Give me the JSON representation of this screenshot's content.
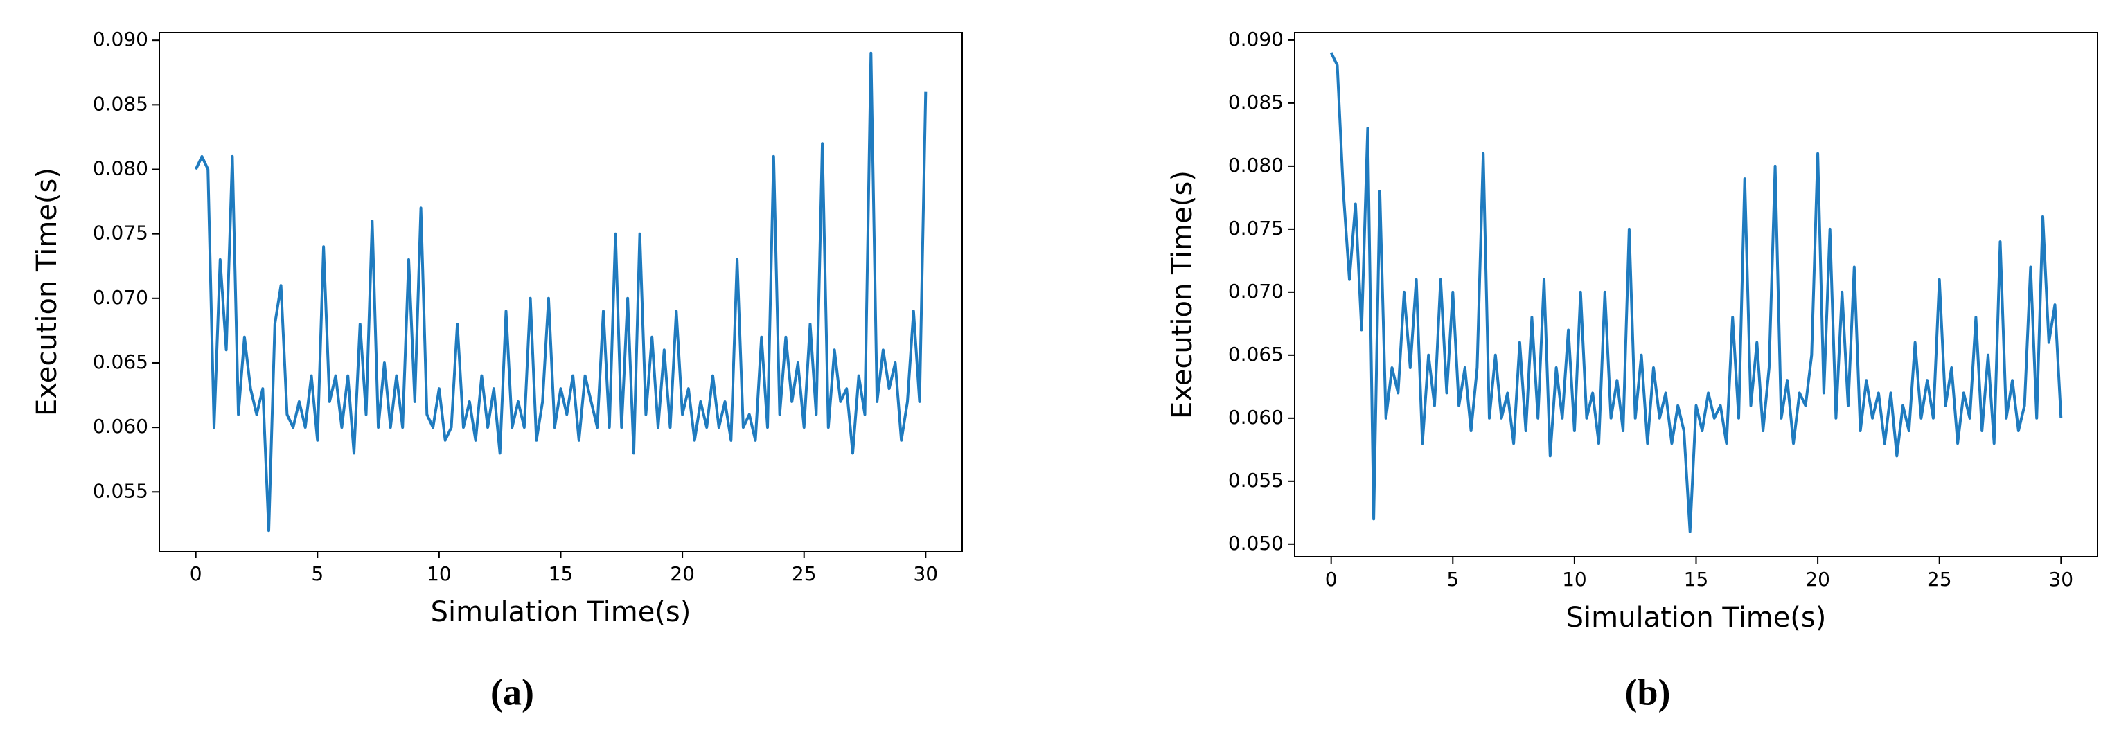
{
  "chart_data": [
    {
      "type": "line",
      "caption": "(a)",
      "x_label": "Simulation Time(s)",
      "y_label": "Execution Time(s)",
      "x": [
        0,
        0.25,
        0.5,
        0.75,
        1,
        1.25,
        1.5,
        1.75,
        2,
        2.25,
        2.5,
        2.75,
        3,
        3.25,
        3.5,
        3.75,
        4,
        4.25,
        4.5,
        4.75,
        5,
        5.25,
        5.5,
        5.75,
        6,
        6.25,
        6.5,
        6.75,
        7,
        7.25,
        7.5,
        7.75,
        8,
        8.25,
        8.5,
        8.75,
        9,
        9.25,
        9.5,
        9.75,
        10,
        10.25,
        10.5,
        10.75,
        11,
        11.25,
        11.5,
        11.75,
        12,
        12.25,
        12.5,
        12.75,
        13,
        13.25,
        13.5,
        13.75,
        14,
        14.25,
        14.5,
        14.75,
        15,
        15.25,
        15.5,
        15.75,
        16,
        16.25,
        16.5,
        16.75,
        17,
        17.25,
        17.5,
        17.75,
        18,
        18.25,
        18.5,
        18.75,
        19,
        19.25,
        19.5,
        19.75,
        20,
        20.25,
        20.5,
        20.75,
        21,
        21.25,
        21.5,
        21.75,
        22,
        22.25,
        22.5,
        22.75,
        23,
        23.25,
        23.5,
        23.75,
        24,
        24.25,
        24.5,
        24.75,
        25,
        25.25,
        25.5,
        25.75,
        26,
        26.25,
        26.5,
        26.75,
        27,
        27.25,
        27.5,
        27.75,
        28,
        28.25,
        28.5,
        28.75,
        29,
        29.25,
        29.5,
        29.75,
        30
      ],
      "series": [
        {
          "color": "#1f7bbf",
          "values": [
            0.08,
            0.081,
            0.08,
            0.06,
            0.073,
            0.066,
            0.081,
            0.061,
            0.067,
            0.063,
            0.061,
            0.063,
            0.052,
            0.068,
            0.071,
            0.061,
            0.06,
            0.062,
            0.06,
            0.064,
            0.059,
            0.074,
            0.062,
            0.064,
            0.06,
            0.064,
            0.058,
            0.068,
            0.061,
            0.076,
            0.06,
            0.065,
            0.06,
            0.064,
            0.06,
            0.073,
            0.062,
            0.077,
            0.061,
            0.06,
            0.063,
            0.059,
            0.06,
            0.068,
            0.06,
            0.062,
            0.059,
            0.064,
            0.06,
            0.063,
            0.058,
            0.069,
            0.06,
            0.062,
            0.06,
            0.07,
            0.059,
            0.062,
            0.07,
            0.06,
            0.063,
            0.061,
            0.064,
            0.059,
            0.064,
            0.062,
            0.06,
            0.069,
            0.06,
            0.075,
            0.06,
            0.07,
            0.058,
            0.075,
            0.061,
            0.067,
            0.06,
            0.066,
            0.06,
            0.069,
            0.061,
            0.063,
            0.059,
            0.062,
            0.06,
            0.064,
            0.06,
            0.062,
            0.059,
            0.073,
            0.06,
            0.061,
            0.059,
            0.067,
            0.06,
            0.081,
            0.061,
            0.067,
            0.062,
            0.065,
            0.06,
            0.068,
            0.061,
            0.082,
            0.06,
            0.066,
            0.062,
            0.063,
            0.058,
            0.064,
            0.061,
            0.089,
            0.062,
            0.066,
            0.063,
            0.065,
            0.059,
            0.062,
            0.069,
            0.062,
            0.086
          ]
        }
      ],
      "xlim": [
        -1.5,
        31.5
      ],
      "xticks": [
        0,
        5,
        10,
        15,
        20,
        25,
        30
      ],
      "ylim": [
        0.0504,
        0.0906
      ],
      "yticks": [
        0.055,
        {
          "value": 0.06,
          "label": "0.060"
        },
        0.065,
        {
          "value": 0.07,
          "label": "0.070"
        },
        0.075,
        {
          "value": 0.08,
          "label": "0.080"
        },
        0.085,
        {
          "value": 0.09,
          "label": "0.090"
        }
      ]
    },
    {
      "type": "line",
      "caption": "(b)",
      "x_label": "Simulation Time(s)",
      "y_label": "Execution Time(s)",
      "x": [
        0,
        0.25,
        0.5,
        0.75,
        1,
        1.25,
        1.5,
        1.75,
        2,
        2.25,
        2.5,
        2.75,
        3,
        3.25,
        3.5,
        3.75,
        4,
        4.25,
        4.5,
        4.75,
        5,
        5.25,
        5.5,
        5.75,
        6,
        6.25,
        6.5,
        6.75,
        7,
        7.25,
        7.5,
        7.75,
        8,
        8.25,
        8.5,
        8.75,
        9,
        9.25,
        9.5,
        9.75,
        10,
        10.25,
        10.5,
        10.75,
        11,
        11.25,
        11.5,
        11.75,
        12,
        12.25,
        12.5,
        12.75,
        13,
        13.25,
        13.5,
        13.75,
        14,
        14.25,
        14.5,
        14.75,
        15,
        15.25,
        15.5,
        15.75,
        16,
        16.25,
        16.5,
        16.75,
        17,
        17.25,
        17.5,
        17.75,
        18,
        18.25,
        18.5,
        18.75,
        19,
        19.25,
        19.5,
        19.75,
        20,
        20.25,
        20.5,
        20.75,
        21,
        21.25,
        21.5,
        21.75,
        22,
        22.25,
        22.5,
        22.75,
        23,
        23.25,
        23.5,
        23.75,
        24,
        24.25,
        24.5,
        24.75,
        25,
        25.25,
        25.5,
        25.75,
        26,
        26.25,
        26.5,
        26.75,
        27,
        27.25,
        27.5,
        27.75,
        28,
        28.25,
        28.5,
        28.75,
        29,
        29.25,
        29.5,
        29.75,
        30
      ],
      "series": [
        {
          "color": "#1f7bbf",
          "values": [
            0.089,
            0.088,
            0.078,
            0.071,
            0.077,
            0.067,
            0.083,
            0.052,
            0.078,
            0.06,
            0.064,
            0.062,
            0.07,
            0.064,
            0.071,
            0.058,
            0.065,
            0.061,
            0.071,
            0.062,
            0.07,
            0.061,
            0.064,
            0.059,
            0.064,
            0.081,
            0.06,
            0.065,
            0.06,
            0.062,
            0.058,
            0.066,
            0.059,
            0.068,
            0.06,
            0.071,
            0.057,
            0.064,
            0.06,
            0.067,
            0.059,
            0.07,
            0.06,
            0.062,
            0.058,
            0.07,
            0.06,
            0.063,
            0.059,
            0.075,
            0.06,
            0.065,
            0.058,
            0.064,
            0.06,
            0.062,
            0.058,
            0.061,
            0.059,
            0.051,
            0.061,
            0.059,
            0.062,
            0.06,
            0.061,
            0.058,
            0.068,
            0.06,
            0.079,
            0.061,
            0.066,
            0.059,
            0.064,
            0.08,
            0.06,
            0.063,
            0.058,
            0.062,
            0.061,
            0.065,
            0.081,
            0.062,
            0.075,
            0.06,
            0.07,
            0.061,
            0.072,
            0.059,
            0.063,
            0.06,
            0.062,
            0.058,
            0.062,
            0.057,
            0.061,
            0.059,
            0.066,
            0.06,
            0.063,
            0.06,
            0.071,
            0.061,
            0.064,
            0.058,
            0.062,
            0.06,
            0.068,
            0.059,
            0.065,
            0.058,
            0.074,
            0.06,
            0.063,
            0.059,
            0.061,
            0.072,
            0.06,
            0.076,
            0.066,
            0.069,
            0.06
          ]
        }
      ],
      "xlim": [
        -1.5,
        31.5
      ],
      "xticks": [
        0,
        5,
        10,
        15,
        20,
        25,
        30
      ],
      "ylim": [
        0.049,
        0.0906
      ],
      "yticks": [
        {
          "value": 0.05,
          "label": "0.050"
        },
        0.055,
        {
          "value": 0.06,
          "label": "0.060"
        },
        0.065,
        {
          "value": 0.07,
          "label": "0.070"
        },
        0.075,
        {
          "value": 0.08,
          "label": "0.080"
        },
        0.085,
        {
          "value": 0.09,
          "label": "0.090"
        }
      ]
    }
  ]
}
